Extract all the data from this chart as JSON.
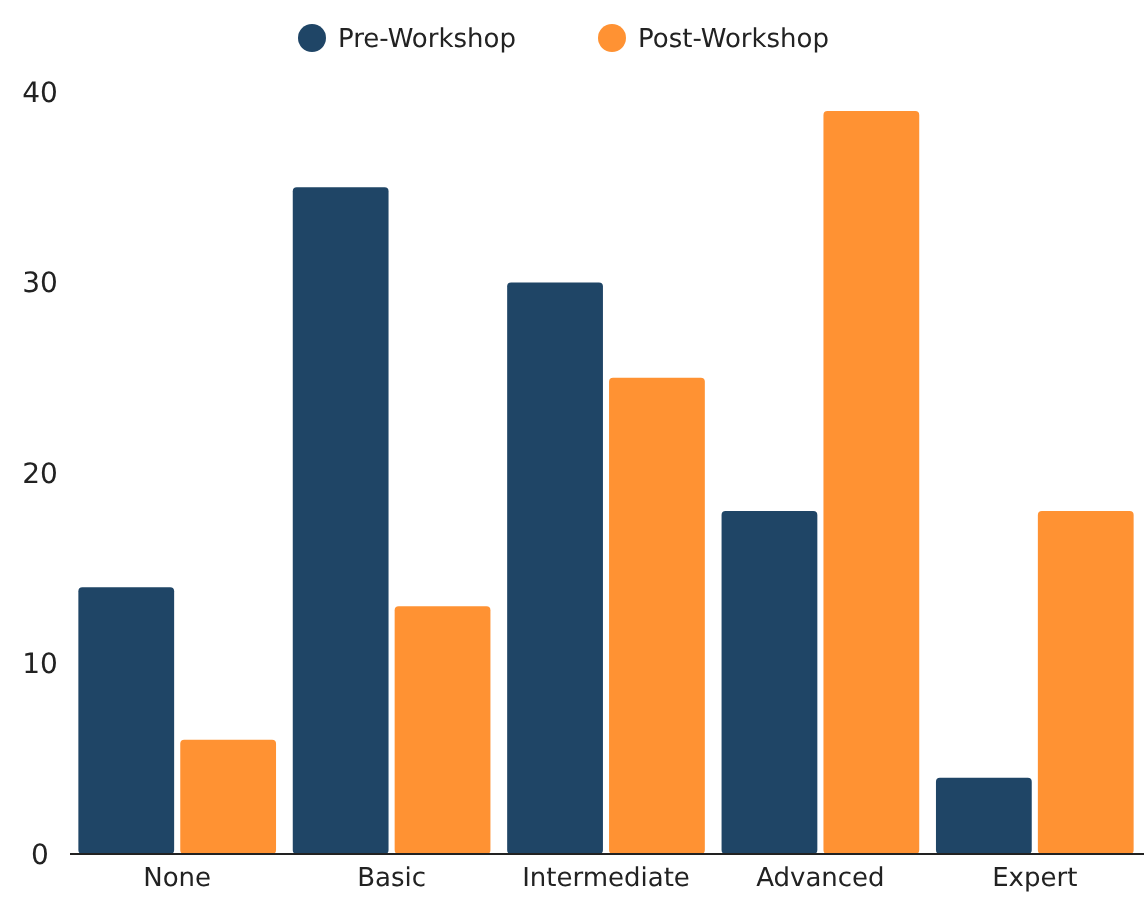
{
  "chart_data": {
    "type": "bar",
    "categories": [
      "None",
      "Basic",
      "Intermediate",
      "Advanced",
      "Expert"
    ],
    "series": [
      {
        "name": "Pre-Workshop",
        "color": "#1f4566",
        "values": [
          14,
          35,
          30,
          18,
          4
        ]
      },
      {
        "name": "Post-Workshop",
        "color": "#ff9233",
        "values": [
          6,
          13,
          25,
          39,
          18
        ]
      }
    ],
    "ylim": [
      0,
      40
    ],
    "yticks": [
      0,
      10,
      20,
      30,
      40
    ],
    "grid": false,
    "legend": "top"
  }
}
